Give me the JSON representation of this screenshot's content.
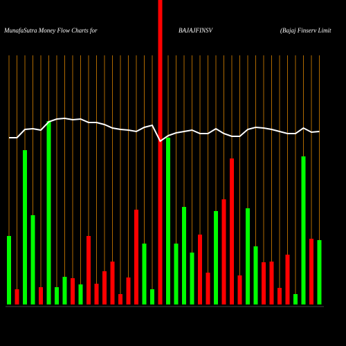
{
  "chart_data": {
    "type": "bar",
    "title": "MunafaSutra  Money Flow  Charts for",
    "subtitle": "BAJAJFINSV",
    "annotation": "(Bajaj Finserv   Limit",
    "categories": [
      null,
      null,
      null,
      null,
      null,
      null,
      null,
      null,
      null,
      null,
      null,
      null,
      null,
      null,
      null,
      null,
      null,
      null,
      null,
      null,
      null,
      null,
      null,
      null,
      null,
      null,
      null,
      null,
      null,
      null,
      null,
      null,
      null,
      null,
      null,
      null,
      null,
      null,
      null,
      null
    ],
    "values": [
      99,
      22,
      223,
      129,
      25,
      265,
      25,
      40,
      38,
      29,
      99,
      30,
      48,
      62,
      15,
      39,
      137,
      88,
      22,
      445,
      241,
      88,
      141,
      75,
      101,
      46,
      135,
      152,
      211,
      42,
      139,
      84,
      61,
      62,
      24,
      72,
      15,
      214,
      95,
      93
    ],
    "colors": [
      "#00ff00",
      "#ff0000",
      "#00ff00",
      "#00ff00",
      "#ff0000",
      "#00ff00",
      "#00ff00",
      "#00ff00",
      "#ff0000",
      "#00ff00",
      "#ff0000",
      "#ff0000",
      "#ff0000",
      "#ff0000",
      "#ff0000",
      "#ff0000",
      "#ff0000",
      "#00ff00",
      "#00ff00",
      "#ff0000",
      "#00ff00",
      "#00ff00",
      "#00ff00",
      "#00ff00",
      "#ff0000",
      "#ff0000",
      "#00ff00",
      "#ff0000",
      "#ff0000",
      "#ff0000",
      "#00ff00",
      "#00ff00",
      "#ff0000",
      "#ff0000",
      "#ff0000",
      "#ff0000",
      "#00ff00",
      "#00ff00",
      "#ff0000",
      "#00ff00"
    ],
    "line_values": [
      241,
      241,
      253,
      254,
      252,
      264,
      268,
      269,
      267,
      268,
      263,
      263,
      260,
      255,
      253,
      252,
      250,
      256,
      259,
      236,
      244,
      248,
      250,
      252,
      247,
      247,
      254,
      247,
      243,
      243,
      253,
      256,
      255,
      253,
      250,
      247,
      247,
      255,
      249,
      250
    ],
    "line_color": "#ffffff",
    "ylim": [
      0,
      440
    ]
  }
}
